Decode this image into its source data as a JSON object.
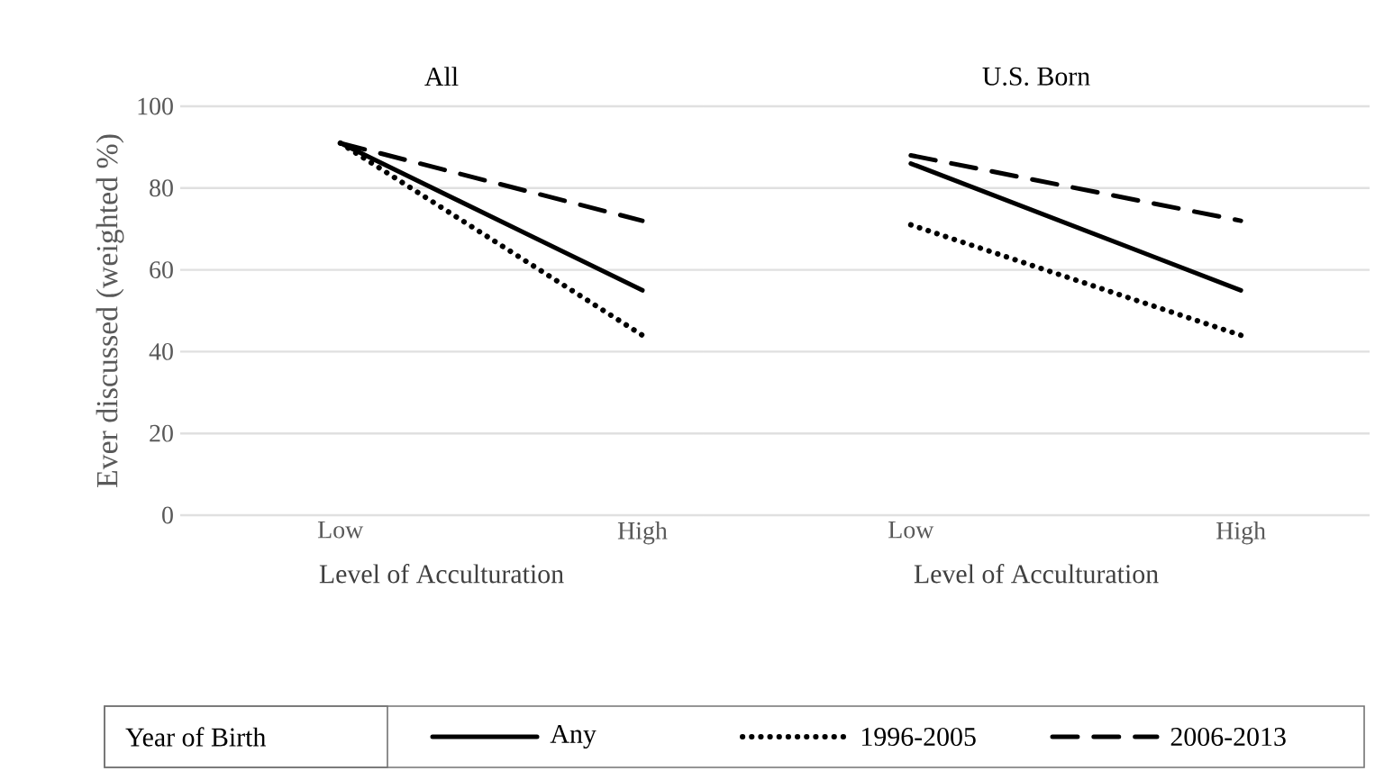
{
  "chart_data": [
    {
      "type": "line",
      "title": "All",
      "categories": [
        "Low",
        "High"
      ],
      "xlabel": "Level of Acculturation",
      "ylabel": "Ever discussed (weighted %)",
      "ylim": [
        0,
        100
      ],
      "yticks": [
        0,
        20,
        40,
        60,
        80,
        100
      ],
      "grid": "y",
      "legend": "bottom",
      "legend_title": "Year of Birth",
      "marker": "none",
      "series": [
        {
          "name": "Any",
          "color": "#000000",
          "line_style": "solid",
          "values": [
            91,
            55
          ]
        },
        {
          "name": "1996-2005",
          "color": "#000000",
          "line_style": "dotted",
          "values": [
            91,
            44
          ]
        },
        {
          "name": "2006-2013",
          "color": "#000000",
          "line_style": "dashed",
          "values": [
            91,
            72
          ]
        }
      ]
    },
    {
      "type": "line",
      "title": "U.S. Born",
      "categories": [
        "Low",
        "High"
      ],
      "xlabel": "Level of Acculturation",
      "ylim": [
        0,
        100
      ],
      "yticks": [
        0,
        20,
        40,
        60,
        80,
        100
      ],
      "grid": "y",
      "tick_labels": "x",
      "marker": "none",
      "series": [
        {
          "color": "#000000",
          "line_style": "solid",
          "values": [
            86,
            55
          ]
        },
        {
          "color": "#000000",
          "line_style": "dotted",
          "values": [
            71,
            44
          ]
        },
        {
          "color": "#000000",
          "line_style": "dashed",
          "values": [
            88,
            72
          ]
        }
      ]
    }
  ]
}
